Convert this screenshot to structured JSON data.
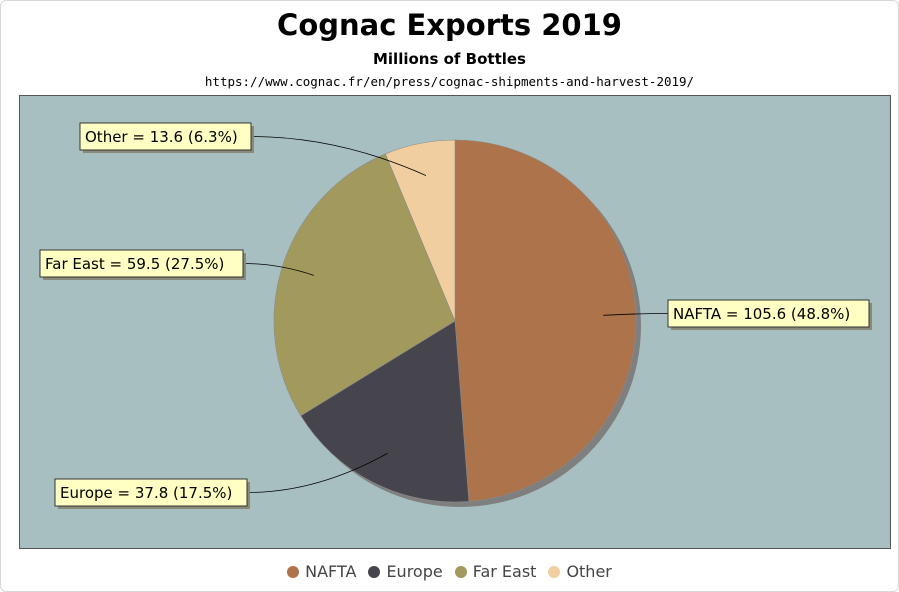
{
  "chart_data": {
    "type": "pie",
    "title": "Cognac Exports 2019",
    "subtitle": "Millions of Bottles",
    "source": "https://www.cognac.fr/en/press/cognac-shipments-and-harvest-2019/",
    "categories": [
      "NAFTA",
      "Europe",
      "Far East",
      "Other"
    ],
    "values": [
      105.6,
      37.8,
      59.5,
      13.6
    ],
    "percentages": [
      "48.8%",
      "17.5%",
      "27.5%",
      "6.3%"
    ],
    "data_labels": [
      "NAFTA = 105.6 (48.8%)",
      "Europe = 37.8 (17.5%)",
      "Far East = 59.5 (27.5%)",
      "Other = 13.6 (6.3%)"
    ],
    "colors": [
      "#ad734a",
      "#46454d",
      "#a29a5d",
      "#f1cea0"
    ],
    "plot_background": "#a8bfc1",
    "legend_position": "bottom"
  }
}
